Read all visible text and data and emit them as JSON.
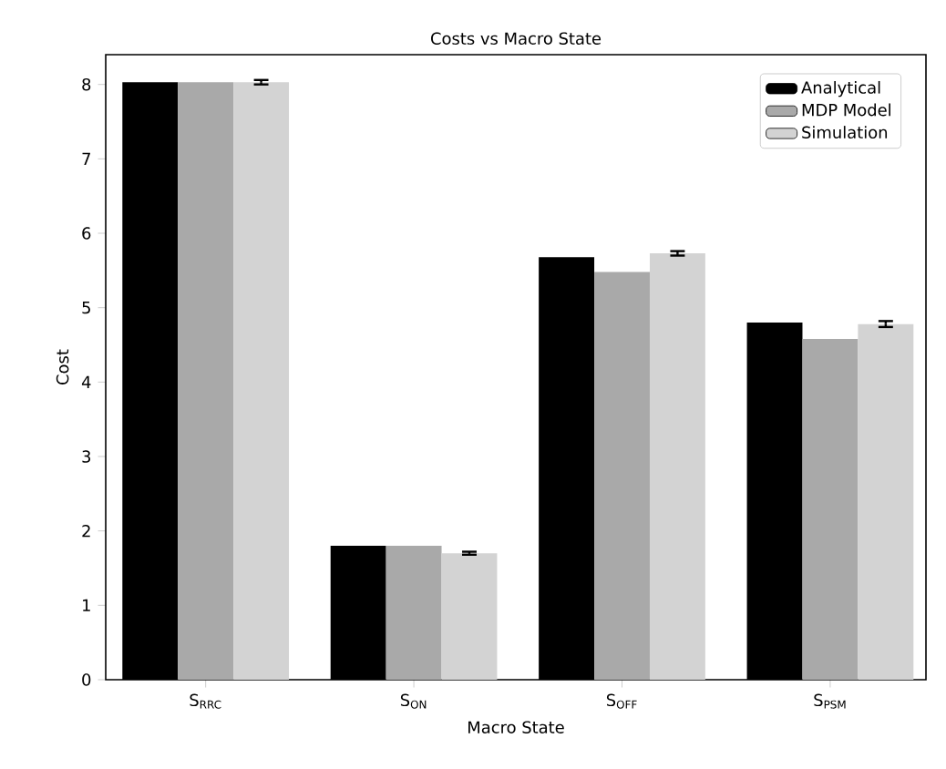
{
  "chart_data": {
    "type": "bar",
    "title": "Costs vs Macro State",
    "xlabel": "Macro State",
    "ylabel": "Cost",
    "categories": [
      "S$_{RRC}$",
      "S$_{ON}$",
      "S$_{OFF}$",
      "S$_{PSM}$"
    ],
    "series": [
      {
        "name": "Analytical",
        "color": "#000000",
        "values": [
          8.03,
          1.8,
          5.68,
          4.8
        ]
      },
      {
        "name": "MDP Model",
        "color": "#a9a9a9",
        "values": [
          8.03,
          1.8,
          5.48,
          4.58
        ]
      },
      {
        "name": "Simulation",
        "color": "#d3d3d3",
        "values": [
          8.03,
          1.7,
          5.73,
          4.78
        ],
        "errors": [
          0.03,
          0.02,
          0.03,
          0.04
        ]
      }
    ],
    "ylim": [
      0,
      8.4
    ],
    "yticks": [
      0,
      1,
      2,
      3,
      4,
      5,
      6,
      7,
      8
    ],
    "legend": "top right"
  }
}
